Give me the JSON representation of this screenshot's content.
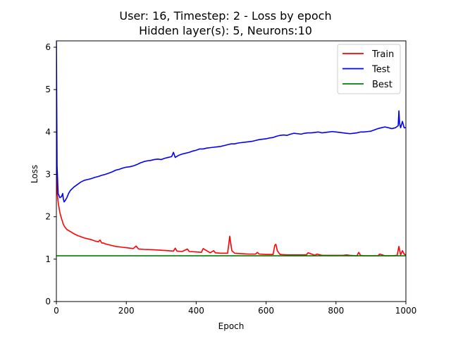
{
  "chart_data": {
    "type": "line",
    "title_lines": [
      "User: 16, Timestep: 2 - Loss by epoch",
      "Hidden layer(s): 5, Neurons:10"
    ],
    "xlabel": "Epoch",
    "ylabel": "Loss",
    "xlim": [
      0,
      1000
    ],
    "ylim": [
      0,
      6.15
    ],
    "xticks": [
      0,
      200,
      400,
      600,
      800,
      1000
    ],
    "xtick_labels": [
      "0",
      "200",
      "400",
      "600",
      "800",
      "1000"
    ],
    "yticks": [
      0,
      1,
      2,
      3,
      4,
      5,
      6
    ],
    "ytick_labels": [
      "0",
      "1",
      "2",
      "3",
      "4",
      "5",
      "6"
    ],
    "grid": false,
    "legend_position": "top-right",
    "series": [
      {
        "name": "Train",
        "color": "#ff0000",
        "x": [
          0,
          2,
          5,
          10,
          15,
          20,
          25,
          30,
          40,
          50,
          60,
          70,
          80,
          90,
          100,
          110,
          120,
          125,
          130,
          135,
          140,
          150,
          160,
          170,
          180,
          190,
          200,
          210,
          220,
          228,
          235,
          250,
          280,
          300,
          320,
          335,
          340,
          345,
          360,
          375,
          380,
          400,
          415,
          420,
          440,
          450,
          455,
          470,
          490,
          496,
          502,
          510,
          530,
          550,
          570,
          575,
          580,
          600,
          620,
          625,
          628,
          632,
          640,
          660,
          680,
          700,
          715,
          720,
          740,
          745,
          760,
          780,
          800,
          820,
          830,
          840,
          860,
          865,
          870,
          880,
          900,
          920,
          925,
          940,
          960,
          975,
          980,
          985,
          990,
          995,
          1000
        ],
        "y": [
          3.8,
          2.6,
          2.35,
          2.1,
          1.95,
          1.82,
          1.75,
          1.7,
          1.65,
          1.6,
          1.56,
          1.53,
          1.5,
          1.48,
          1.46,
          1.43,
          1.41,
          1.45,
          1.38,
          1.38,
          1.36,
          1.34,
          1.32,
          1.3,
          1.29,
          1.28,
          1.27,
          1.26,
          1.25,
          1.31,
          1.24,
          1.23,
          1.22,
          1.21,
          1.2,
          1.19,
          1.26,
          1.19,
          1.18,
          1.24,
          1.18,
          1.17,
          1.16,
          1.25,
          1.15,
          1.2,
          1.15,
          1.14,
          1.14,
          1.54,
          1.2,
          1.14,
          1.13,
          1.12,
          1.12,
          1.16,
          1.12,
          1.11,
          1.11,
          1.33,
          1.35,
          1.2,
          1.11,
          1.1,
          1.1,
          1.1,
          1.1,
          1.15,
          1.09,
          1.12,
          1.09,
          1.09,
          1.09,
          1.09,
          1.1,
          1.09,
          1.08,
          1.16,
          1.09,
          1.08,
          1.08,
          1.08,
          1.12,
          1.08,
          1.08,
          1.09,
          1.3,
          1.1,
          1.2,
          1.12,
          1.1
        ]
      },
      {
        "name": "Test",
        "color": "#0000ff",
        "x": [
          0,
          2,
          5,
          10,
          15,
          18,
          20,
          22,
          25,
          30,
          35,
          40,
          50,
          60,
          70,
          80,
          90,
          100,
          110,
          120,
          130,
          140,
          150,
          160,
          170,
          180,
          190,
          200,
          210,
          220,
          230,
          240,
          250,
          260,
          270,
          280,
          290,
          300,
          310,
          320,
          330,
          335,
          340,
          350,
          360,
          370,
          380,
          390,
          400,
          410,
          420,
          430,
          440,
          450,
          460,
          470,
          480,
          490,
          500,
          510,
          520,
          530,
          540,
          550,
          560,
          570,
          580,
          590,
          600,
          610,
          620,
          630,
          640,
          650,
          660,
          670,
          680,
          690,
          700,
          710,
          720,
          730,
          740,
          750,
          760,
          770,
          780,
          790,
          800,
          810,
          820,
          830,
          840,
          850,
          860,
          870,
          880,
          890,
          900,
          910,
          920,
          930,
          940,
          950,
          960,
          970,
          978,
          980,
          982,
          985,
          990,
          995,
          1000
        ],
        "y": [
          6.15,
          3.2,
          2.55,
          2.45,
          2.48,
          2.55,
          2.42,
          2.35,
          2.38,
          2.45,
          2.55,
          2.62,
          2.7,
          2.76,
          2.82,
          2.86,
          2.88,
          2.9,
          2.93,
          2.95,
          2.98,
          3.0,
          3.03,
          3.06,
          3.1,
          3.12,
          3.15,
          3.17,
          3.18,
          3.2,
          3.23,
          3.27,
          3.3,
          3.32,
          3.33,
          3.35,
          3.36,
          3.35,
          3.38,
          3.4,
          3.42,
          3.52,
          3.4,
          3.45,
          3.48,
          3.5,
          3.52,
          3.55,
          3.57,
          3.6,
          3.6,
          3.62,
          3.63,
          3.64,
          3.65,
          3.66,
          3.68,
          3.7,
          3.72,
          3.72,
          3.74,
          3.75,
          3.76,
          3.77,
          3.78,
          3.8,
          3.82,
          3.83,
          3.84,
          3.86,
          3.87,
          3.9,
          3.92,
          3.93,
          3.92,
          3.95,
          3.97,
          3.96,
          3.95,
          3.97,
          3.98,
          3.98,
          3.99,
          4.0,
          3.98,
          3.99,
          4.0,
          4.01,
          4.0,
          3.99,
          3.98,
          3.97,
          3.96,
          3.97,
          3.98,
          4.0,
          4.0,
          4.01,
          4.02,
          4.05,
          4.08,
          4.1,
          4.12,
          4.1,
          4.08,
          4.1,
          4.15,
          4.5,
          4.2,
          4.1,
          4.25,
          4.1,
          4.1
        ]
      },
      {
        "name": "Best",
        "color": "#008000",
        "x": [
          0,
          1000
        ],
        "y": [
          1.08,
          1.08
        ]
      }
    ]
  }
}
